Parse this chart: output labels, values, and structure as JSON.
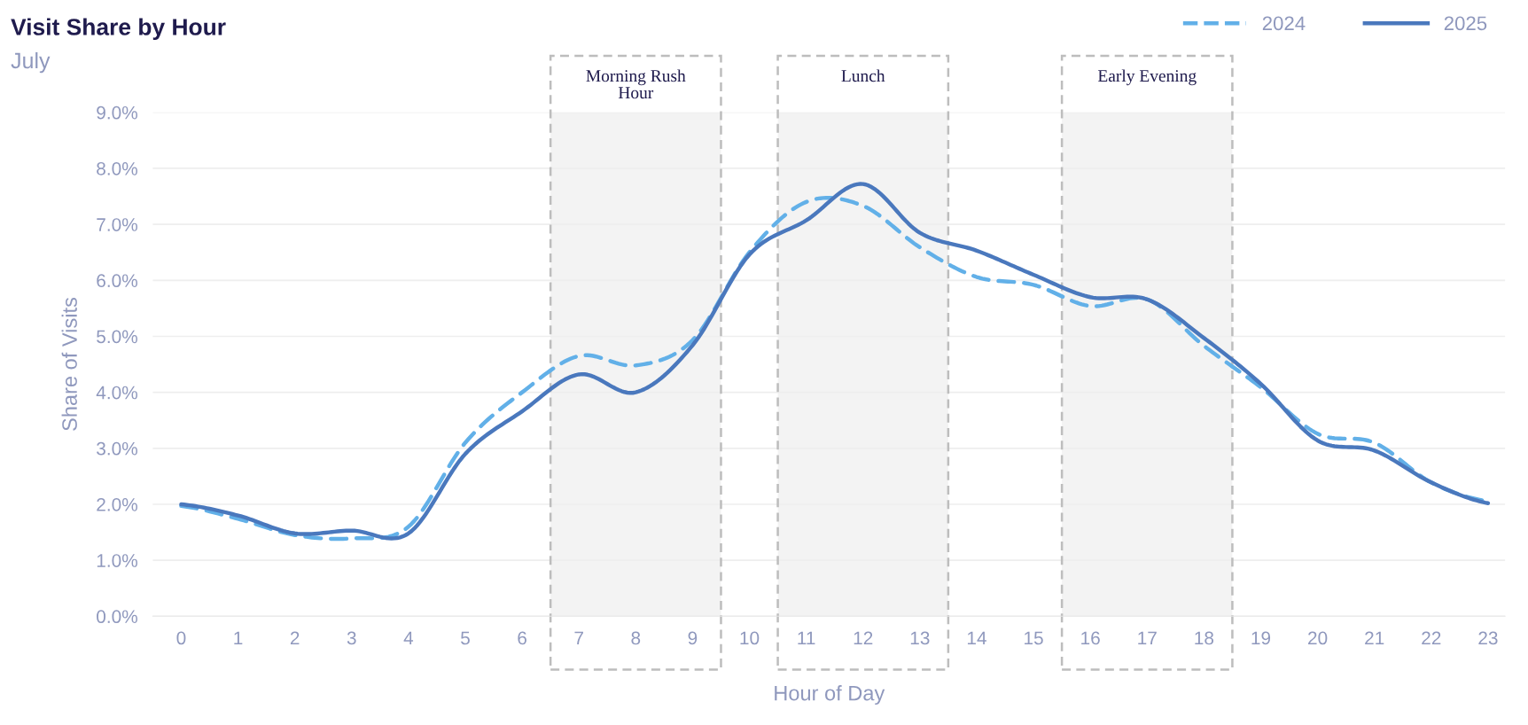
{
  "chart_data": {
    "type": "line",
    "title": "Visit Share by Hour",
    "subtitle": "July",
    "xlabel": "Hour of Day",
    "ylabel": "Share of Visits",
    "x": [
      0,
      1,
      2,
      3,
      4,
      5,
      6,
      7,
      8,
      9,
      10,
      11,
      12,
      13,
      14,
      15,
      16,
      17,
      18,
      19,
      20,
      21,
      22,
      23
    ],
    "series": [
      {
        "name": "2024",
        "color": "#62b0e8",
        "line_style": "dashed",
        "values": [
          1.97,
          1.74,
          1.45,
          1.39,
          1.6,
          3.1,
          4.0,
          4.65,
          4.48,
          4.93,
          6.5,
          7.4,
          7.33,
          6.59,
          6.06,
          5.92,
          5.54,
          5.66,
          4.83,
          4.09,
          3.26,
          3.1,
          2.39,
          2.05
        ]
      },
      {
        "name": "2025",
        "color": "#4a78bd",
        "line_style": "solid",
        "values": [
          2.0,
          1.8,
          1.48,
          1.53,
          1.48,
          2.9,
          3.66,
          4.32,
          4.0,
          4.84,
          6.46,
          7.07,
          7.72,
          6.85,
          6.53,
          6.1,
          5.7,
          5.66,
          4.97,
          4.15,
          3.14,
          2.96,
          2.39,
          2.02
        ]
      }
    ],
    "xlim": [
      -0.5,
      23.3
    ],
    "xticks": [
      0,
      1,
      2,
      3,
      4,
      5,
      6,
      7,
      8,
      9,
      10,
      11,
      12,
      13,
      14,
      15,
      16,
      17,
      18,
      19,
      20,
      21,
      22,
      23
    ],
    "ylim": [
      0,
      9
    ],
    "yticks": [
      {
        "value": 0,
        "label": "0.0%"
      },
      {
        "value": 1,
        "label": "1.0%"
      },
      {
        "value": 2,
        "label": "2.0%"
      },
      {
        "value": 3,
        "label": "3.0%"
      },
      {
        "value": 4,
        "label": "4.0%"
      },
      {
        "value": 5,
        "label": "5.0%"
      },
      {
        "value": 6,
        "label": "6.0%"
      },
      {
        "value": 7,
        "label": "7.0%"
      },
      {
        "value": 8,
        "label": "8.0%"
      },
      {
        "value": 9,
        "label": "9.0%"
      }
    ],
    "bands": [
      {
        "axis": "x",
        "from": 6.5,
        "to": 9.5,
        "label": "Morning Rush\nHour",
        "color": "#bdbdbd"
      },
      {
        "axis": "x",
        "from": 10.5,
        "to": 13.5,
        "label": "Lunch",
        "color": "#bdbdbd"
      },
      {
        "axis": "x",
        "from": 15.5,
        "to": 18.5,
        "label": "Early Evening",
        "color": "#bdbdbd"
      }
    ],
    "grid": "y",
    "legend": "top right",
    "marker": "none"
  }
}
